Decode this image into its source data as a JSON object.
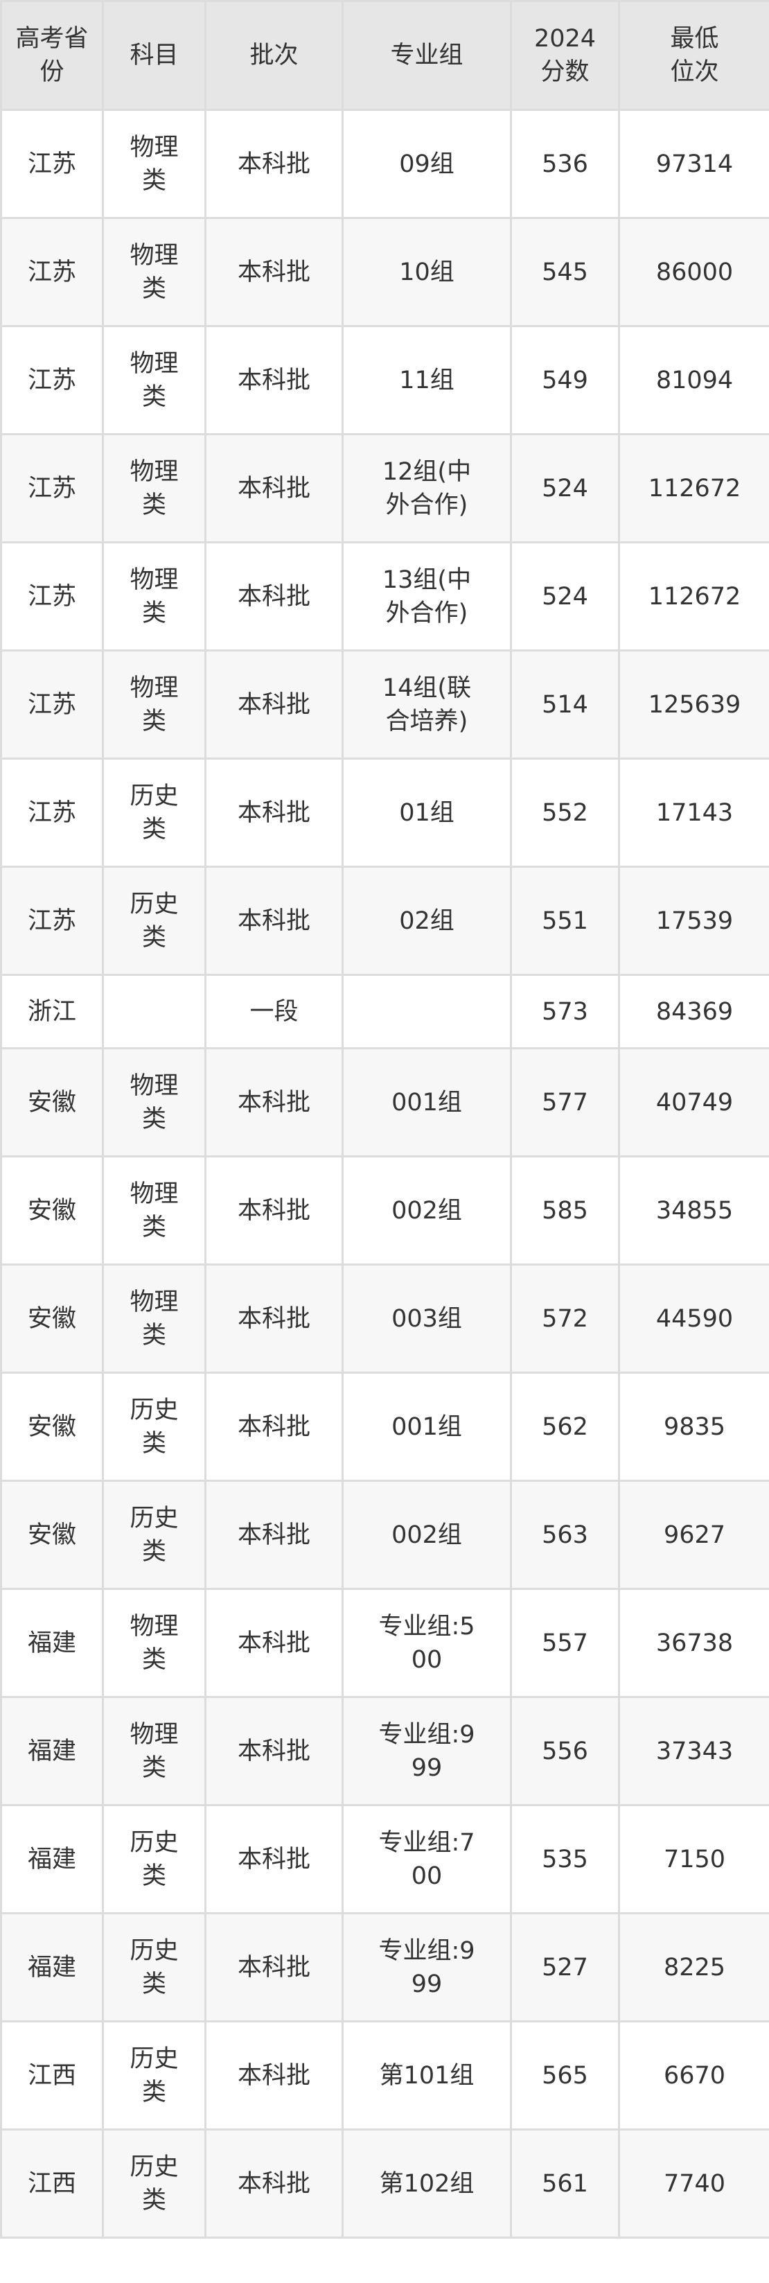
{
  "table": {
    "headers": [
      "高考省份",
      "科目",
      "批次",
      "专业组",
      "2024分数",
      "最低位次"
    ],
    "rows": [
      [
        "江苏",
        "物理类",
        "本科批",
        "09组",
        "536",
        "97314"
      ],
      [
        "江苏",
        "物理类",
        "本科批",
        "10组",
        "545",
        "86000"
      ],
      [
        "江苏",
        "物理类",
        "本科批",
        "11组",
        "549",
        "81094"
      ],
      [
        "江苏",
        "物理类",
        "本科批",
        "12组(中外合作)",
        "524",
        "112672"
      ],
      [
        "江苏",
        "物理类",
        "本科批",
        "13组(中外合作)",
        "524",
        "112672"
      ],
      [
        "江苏",
        "物理类",
        "本科批",
        "14组(联合培养)",
        "514",
        "125639"
      ],
      [
        "江苏",
        "历史类",
        "本科批",
        "01组",
        "552",
        "17143"
      ],
      [
        "江苏",
        "历史类",
        "本科批",
        "02组",
        "551",
        "17539"
      ],
      [
        "浙江",
        "",
        "一段",
        "",
        "573",
        "84369"
      ],
      [
        "安徽",
        "物理类",
        "本科批",
        "001组",
        "577",
        "40749"
      ],
      [
        "安徽",
        "物理类",
        "本科批",
        "002组",
        "585",
        "34855"
      ],
      [
        "安徽",
        "物理类",
        "本科批",
        "003组",
        "572",
        "44590"
      ],
      [
        "安徽",
        "历史类",
        "本科批",
        "001组",
        "562",
        "9835"
      ],
      [
        "安徽",
        "历史类",
        "本科批",
        "002组",
        "563",
        "9627"
      ],
      [
        "福建",
        "物理类",
        "本科批",
        "专业组:500",
        "557",
        "36738"
      ],
      [
        "福建",
        "物理类",
        "本科批",
        "专业组:999",
        "556",
        "37343"
      ],
      [
        "福建",
        "历史类",
        "本科批",
        "专业组:700",
        "535",
        "7150"
      ],
      [
        "福建",
        "历史类",
        "本科批",
        "专业组:999",
        "527",
        "8225"
      ],
      [
        "江西",
        "历史类",
        "本科批",
        "第101组",
        "565",
        "6670"
      ],
      [
        "江西",
        "历史类",
        "本科批",
        "第102组",
        "561",
        "7740"
      ]
    ]
  }
}
